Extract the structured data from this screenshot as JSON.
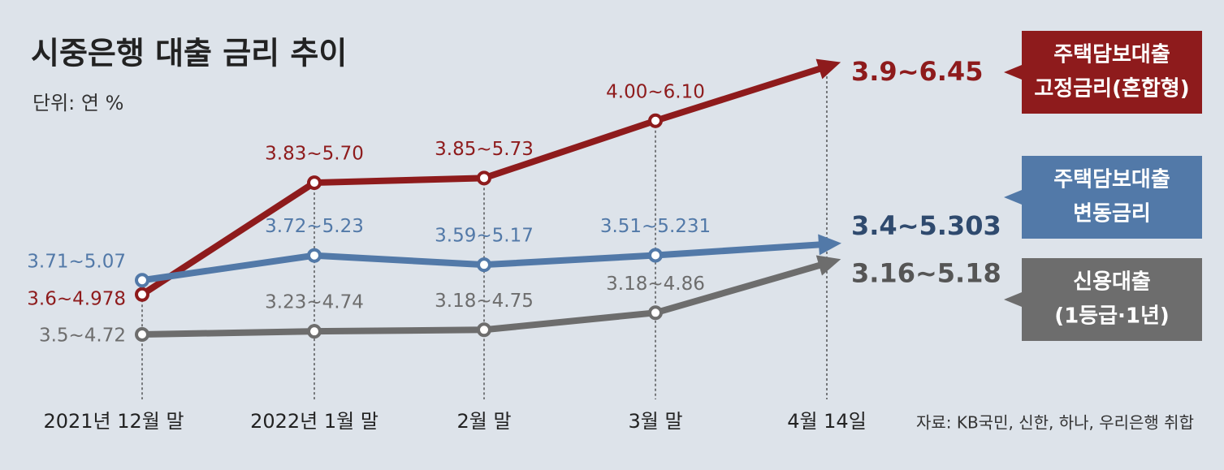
{
  "chart_data": {
    "type": "line",
    "title": "시중은행 대출 금리 추이",
    "subtitle": "단위: 연 %",
    "source": "자료: KB국민, 신한, 하나, 우리은행 취합",
    "categories": [
      "2021년 12월 말",
      "2022년 1월 말",
      "2월 말",
      "3월 말",
      "4월 14일"
    ],
    "series": [
      {
        "name": [
          "주택담보대출",
          "고정금리(혼합형)"
        ],
        "color": "#8e1b1c",
        "values": [
          4.978,
          5.7,
          5.73,
          6.1,
          6.45
        ],
        "value_labels": [
          "3.6~4.978",
          "3.83~5.70",
          "3.85~5.73",
          "4.00~6.10",
          "3.9~6.45"
        ]
      },
      {
        "name": [
          "주택담보대출",
          "변동금리"
        ],
        "color": "#5279a8",
        "values": [
          5.07,
          5.23,
          5.17,
          5.231,
          5.303
        ],
        "value_labels": [
          "3.71~5.07",
          "3.72~5.23",
          "3.59~5.17",
          "3.51~5.231",
          "3.4~5.303"
        ]
      },
      {
        "name": [
          "신용대출",
          "(1등급·1년)"
        ],
        "color": "#6d6d6d",
        "values": [
          4.72,
          4.74,
          4.75,
          4.86,
          5.18
        ],
        "value_labels": [
          "3.5~4.72",
          "3.23~4.74",
          "3.18~4.75",
          "3.18~4.86",
          "3.16~5.18"
        ]
      }
    ]
  }
}
